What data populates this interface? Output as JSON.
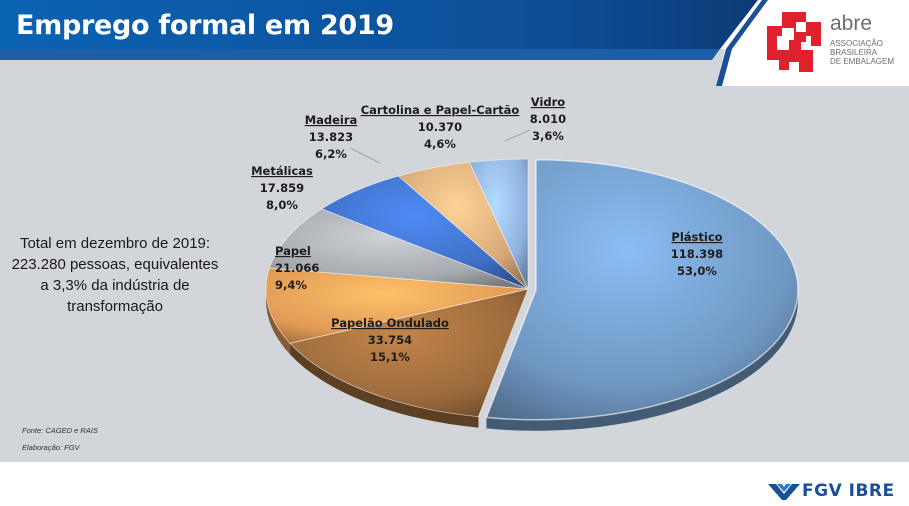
{
  "header": {
    "title": "Emprego formal em 2019",
    "logo": {
      "name": "abre",
      "subtitle_lines": [
        "ASSOCIAÇÃO",
        "BRASILEIRA",
        "DE EMBALAGEM"
      ]
    }
  },
  "note": {
    "lines": [
      "Total em dezembro de 2019:",
      "223.280 pessoas, equivalentes",
      "a 3,3% da indústria de",
      "transformação"
    ]
  },
  "source": {
    "fonte": "Fonte: CAGED e RAIS",
    "elaboracao": "Elaboração: FGV"
  },
  "footer": {
    "brand": "FGV IBRE"
  },
  "colors": {
    "header_blue": "#0b63b4",
    "header_dark": "#0d3a75",
    "chart_background": "#d2d5da",
    "plastico": "#6f97c2",
    "papelao": "#9b6a3c",
    "papel": "#e09a55",
    "metalicas": "#a5a8ac",
    "madeira": "#3f6fc4",
    "cartolina": "#d6a878",
    "vidro": "#8fb0de"
  },
  "chart_data": {
    "type": "pie",
    "title": "Emprego formal em 2019",
    "unit": "pessoas",
    "slices": [
      {
        "name": "Plástico",
        "value": 118398,
        "value_label": "118.398",
        "percent_label": "53,0%",
        "percent": 53.0,
        "color": "#6f97c2"
      },
      {
        "name": "Papelão Ondulado",
        "value": 33754,
        "value_label": "33.754",
        "percent_label": "15,1%",
        "percent": 15.1,
        "color": "#9b6a3c"
      },
      {
        "name": "Papel",
        "value": 21066,
        "value_label": "21.066",
        "percent_label": "9,4%",
        "percent": 9.4,
        "color": "#e09a55"
      },
      {
        "name": "Metálicas",
        "value": 17859,
        "value_label": "17.859",
        "percent_label": "8,0%",
        "percent": 8.0,
        "color": "#a5a8ac"
      },
      {
        "name": "Madeira",
        "value": 13823,
        "value_label": "13.823",
        "percent_label": "6,2%",
        "percent": 6.2,
        "color": "#3f6fc4"
      },
      {
        "name": "Cartolina e Papel-Cartão",
        "value": 10370,
        "value_label": "10.370",
        "percent_label": "4,6%",
        "percent": 4.6,
        "color": "#d6a878"
      },
      {
        "name": "Vidro",
        "value": 8010,
        "value_label": "8.010",
        "percent_label": "3,6%",
        "percent": 3.6,
        "color": "#8fb0de"
      }
    ]
  }
}
